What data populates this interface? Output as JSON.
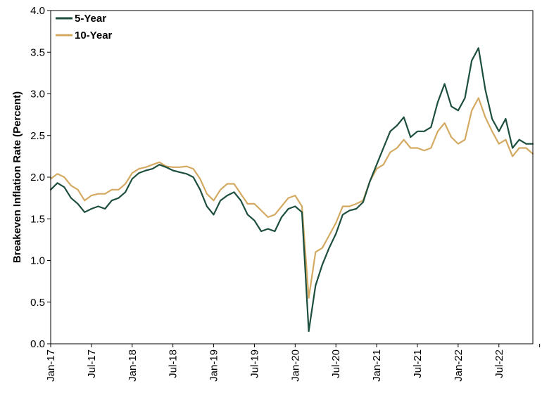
{
  "chart_data": {
    "type": "line",
    "title": "",
    "xlabel": "",
    "ylabel": "Breakeven Inflation Rate (Percent)",
    "ylim": [
      0.0,
      4.0
    ],
    "xlim": [
      "2017-01",
      "2022-12"
    ],
    "grid": false,
    "legend_position": "top-left",
    "y_ticks": [
      "0.0",
      "0.5",
      "1.0",
      "1.5",
      "2.0",
      "2.5",
      "3.0",
      "3.5",
      "4.0"
    ],
    "x_ticks": [
      {
        "label": "Jan-17",
        "date": "2017-01"
      },
      {
        "label": "Jul-17",
        "date": "2017-07"
      },
      {
        "label": "Jan-18",
        "date": "2018-01"
      },
      {
        "label": "Jul-18",
        "date": "2018-07"
      },
      {
        "label": "Jan-19",
        "date": "2019-01"
      },
      {
        "label": "Jul-19",
        "date": "2019-07"
      },
      {
        "label": "Jan-20",
        "date": "2020-01"
      },
      {
        "label": "Jul-20",
        "date": "2020-07"
      },
      {
        "label": "Jan-21",
        "date": "2021-01"
      },
      {
        "label": "Jul-21",
        "date": "2021-07"
      },
      {
        "label": "Jan-22",
        "date": "2022-01"
      },
      {
        "label": "Jul-22",
        "date": "2022-07"
      }
    ],
    "series": [
      {
        "name": "5-Year",
        "color": "#1d4f3c",
        "points": [
          [
            "2017-01",
            1.85
          ],
          [
            "2017-02",
            1.93
          ],
          [
            "2017-03",
            1.88
          ],
          [
            "2017-04",
            1.75
          ],
          [
            "2017-05",
            1.68
          ],
          [
            "2017-06",
            1.58
          ],
          [
            "2017-07",
            1.62
          ],
          [
            "2017-08",
            1.65
          ],
          [
            "2017-09",
            1.62
          ],
          [
            "2017-10",
            1.72
          ],
          [
            "2017-11",
            1.75
          ],
          [
            "2017-12",
            1.82
          ],
          [
            "2018-01",
            1.98
          ],
          [
            "2018-02",
            2.05
          ],
          [
            "2018-03",
            2.08
          ],
          [
            "2018-04",
            2.1
          ],
          [
            "2018-05",
            2.15
          ],
          [
            "2018-06",
            2.12
          ],
          [
            "2018-07",
            2.08
          ],
          [
            "2018-08",
            2.06
          ],
          [
            "2018-09",
            2.04
          ],
          [
            "2018-10",
            2.0
          ],
          [
            "2018-11",
            1.85
          ],
          [
            "2018-12",
            1.65
          ],
          [
            "2019-01",
            1.55
          ],
          [
            "2019-02",
            1.72
          ],
          [
            "2019-03",
            1.78
          ],
          [
            "2019-04",
            1.82
          ],
          [
            "2019-05",
            1.72
          ],
          [
            "2019-06",
            1.55
          ],
          [
            "2019-07",
            1.48
          ],
          [
            "2019-08",
            1.35
          ],
          [
            "2019-09",
            1.38
          ],
          [
            "2019-10",
            1.35
          ],
          [
            "2019-11",
            1.52
          ],
          [
            "2019-12",
            1.62
          ],
          [
            "2020-01",
            1.65
          ],
          [
            "2020-02",
            1.58
          ],
          [
            "2020-03",
            0.15
          ],
          [
            "2020-04",
            0.7
          ],
          [
            "2020-05",
            0.95
          ],
          [
            "2020-06",
            1.15
          ],
          [
            "2020-07",
            1.32
          ],
          [
            "2020-08",
            1.55
          ],
          [
            "2020-09",
            1.6
          ],
          [
            "2020-10",
            1.62
          ],
          [
            "2020-11",
            1.7
          ],
          [
            "2020-12",
            1.95
          ],
          [
            "2021-01",
            2.15
          ],
          [
            "2021-02",
            2.35
          ],
          [
            "2021-03",
            2.55
          ],
          [
            "2021-04",
            2.62
          ],
          [
            "2021-05",
            2.72
          ],
          [
            "2021-06",
            2.48
          ],
          [
            "2021-07",
            2.55
          ],
          [
            "2021-08",
            2.55
          ],
          [
            "2021-09",
            2.6
          ],
          [
            "2021-10",
            2.9
          ],
          [
            "2021-11",
            3.12
          ],
          [
            "2021-12",
            2.85
          ],
          [
            "2022-01",
            2.8
          ],
          [
            "2022-02",
            2.95
          ],
          [
            "2022-03",
            3.4
          ],
          [
            "2022-04",
            3.55
          ],
          [
            "2022-05",
            3.05
          ],
          [
            "2022-06",
            2.7
          ],
          [
            "2022-07",
            2.55
          ],
          [
            "2022-08",
            2.7
          ],
          [
            "2022-09",
            2.35
          ],
          [
            "2022-10",
            2.45
          ],
          [
            "2022-11",
            2.4
          ],
          [
            "2022-12",
            2.4
          ]
        ]
      },
      {
        "name": "10-Year",
        "color": "#d4aa62",
        "points": [
          [
            "2017-01",
            1.98
          ],
          [
            "2017-02",
            2.04
          ],
          [
            "2017-03",
            2.0
          ],
          [
            "2017-04",
            1.9
          ],
          [
            "2017-05",
            1.85
          ],
          [
            "2017-06",
            1.72
          ],
          [
            "2017-07",
            1.78
          ],
          [
            "2017-08",
            1.8
          ],
          [
            "2017-09",
            1.8
          ],
          [
            "2017-10",
            1.85
          ],
          [
            "2017-11",
            1.85
          ],
          [
            "2017-12",
            1.92
          ],
          [
            "2018-01",
            2.05
          ],
          [
            "2018-02",
            2.1
          ],
          [
            "2018-03",
            2.12
          ],
          [
            "2018-04",
            2.15
          ],
          [
            "2018-05",
            2.18
          ],
          [
            "2018-06",
            2.13
          ],
          [
            "2018-07",
            2.12
          ],
          [
            "2018-08",
            2.12
          ],
          [
            "2018-09",
            2.13
          ],
          [
            "2018-10",
            2.1
          ],
          [
            "2018-11",
            1.98
          ],
          [
            "2018-12",
            1.8
          ],
          [
            "2019-01",
            1.72
          ],
          [
            "2019-02",
            1.85
          ],
          [
            "2019-03",
            1.92
          ],
          [
            "2019-04",
            1.92
          ],
          [
            "2019-05",
            1.8
          ],
          [
            "2019-06",
            1.68
          ],
          [
            "2019-07",
            1.68
          ],
          [
            "2019-08",
            1.6
          ],
          [
            "2019-09",
            1.52
          ],
          [
            "2019-10",
            1.55
          ],
          [
            "2019-11",
            1.65
          ],
          [
            "2019-12",
            1.75
          ],
          [
            "2020-01",
            1.78
          ],
          [
            "2020-02",
            1.65
          ],
          [
            "2020-03",
            0.55
          ],
          [
            "2020-04",
            1.1
          ],
          [
            "2020-05",
            1.15
          ],
          [
            "2020-06",
            1.3
          ],
          [
            "2020-07",
            1.45
          ],
          [
            "2020-08",
            1.65
          ],
          [
            "2020-09",
            1.65
          ],
          [
            "2020-10",
            1.68
          ],
          [
            "2020-11",
            1.72
          ],
          [
            "2020-12",
            1.95
          ],
          [
            "2021-01",
            2.1
          ],
          [
            "2021-02",
            2.15
          ],
          [
            "2021-03",
            2.3
          ],
          [
            "2021-04",
            2.35
          ],
          [
            "2021-05",
            2.45
          ],
          [
            "2021-06",
            2.35
          ],
          [
            "2021-07",
            2.35
          ],
          [
            "2021-08",
            2.32
          ],
          [
            "2021-09",
            2.35
          ],
          [
            "2021-10",
            2.55
          ],
          [
            "2021-11",
            2.65
          ],
          [
            "2021-12",
            2.48
          ],
          [
            "2022-01",
            2.4
          ],
          [
            "2022-02",
            2.45
          ],
          [
            "2022-03",
            2.8
          ],
          [
            "2022-04",
            2.95
          ],
          [
            "2022-05",
            2.72
          ],
          [
            "2022-06",
            2.55
          ],
          [
            "2022-07",
            2.4
          ],
          [
            "2022-08",
            2.45
          ],
          [
            "2022-09",
            2.25
          ],
          [
            "2022-10",
            2.35
          ],
          [
            "2022-11",
            2.35
          ],
          [
            "2022-12",
            2.28
          ]
        ]
      }
    ]
  }
}
